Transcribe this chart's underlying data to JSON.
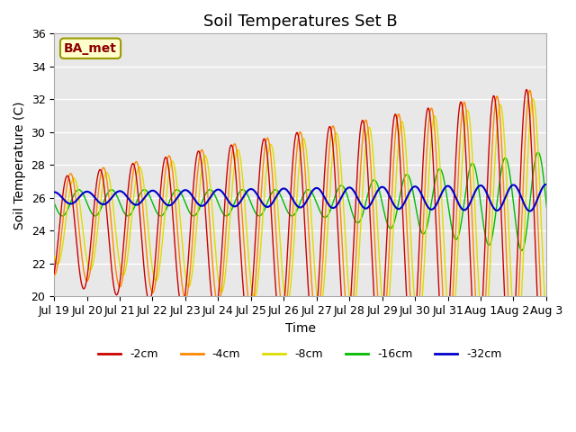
{
  "title": "Soil Temperatures Set B",
  "xlabel": "Time",
  "ylabel": "Soil Temperature (C)",
  "ylim": [
    20,
    36
  ],
  "yticks": [
    20,
    22,
    24,
    26,
    28,
    30,
    32,
    34,
    36
  ],
  "annotation": "BA_met",
  "legend_labels": [
    "-2cm",
    "-4cm",
    "-8cm",
    "-16cm",
    "-32cm"
  ],
  "line_colors": [
    "#cc0000",
    "#ff8800",
    "#dddd00",
    "#00bb00",
    "#0000cc"
  ],
  "background_color": "#e8e8e8",
  "grid_color": "#ffffff",
  "title_fontsize": 13,
  "label_fontsize": 10,
  "tick_fontsize": 9,
  "xtick_positions": [
    0,
    1,
    2,
    3,
    4,
    5,
    6,
    7,
    8,
    9,
    10,
    11,
    12,
    13,
    14,
    15
  ],
  "xtick_labels": [
    "Jul 19",
    "Jul 20",
    "Jul 21",
    "Jul 22",
    "Jul 23",
    "Jul 24",
    "Jul 25",
    "Jul 26",
    "Jul 27",
    "Jul 28",
    "Jul 29",
    "Jul 30",
    "Jul 31",
    "Aug 1",
    "Aug 2",
    "Aug 3"
  ]
}
